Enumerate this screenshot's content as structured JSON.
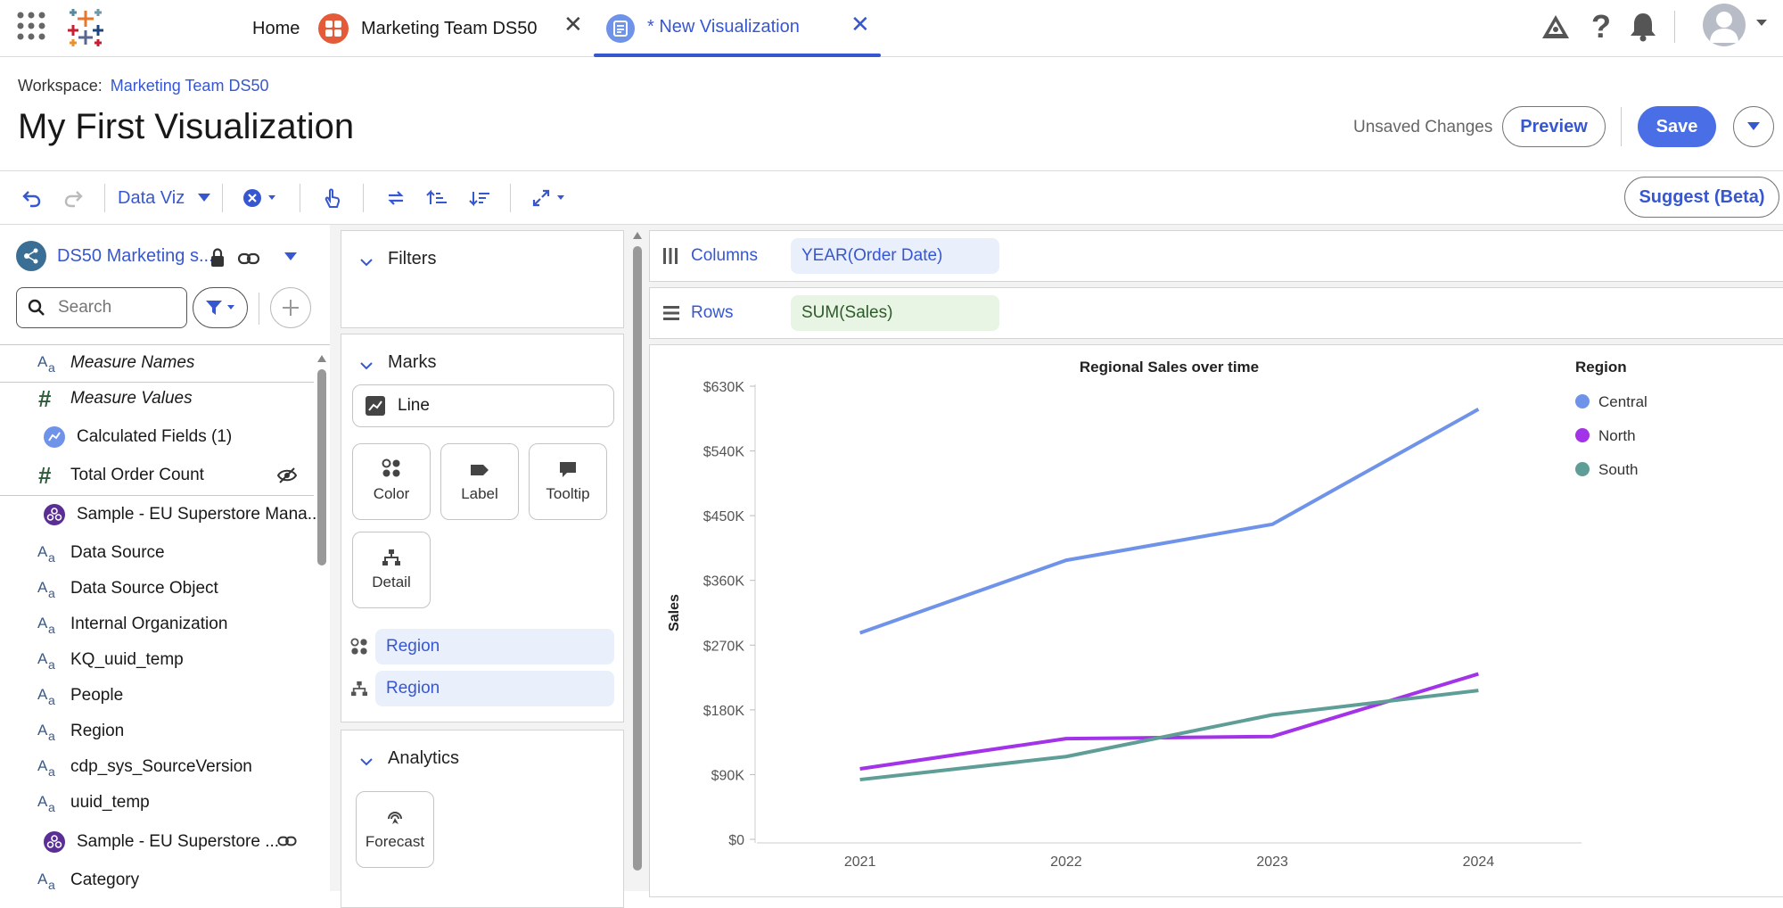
{
  "topnav": {
    "home_label": "Home",
    "tabs": [
      {
        "label": "Marketing Team DS50",
        "active": false
      },
      {
        "label": "* New Visualization",
        "active": true
      }
    ]
  },
  "header": {
    "workspace_label": "Workspace:",
    "workspace_name": "Marketing Team DS50",
    "title": "My First Visualization",
    "unsaved": "Unsaved Changes",
    "preview": "Preview",
    "save": "Save"
  },
  "toolbar": {
    "data_viz": "Data Viz",
    "suggest": "Suggest (Beta)"
  },
  "datapane": {
    "source_name": "DS50 Marketing s...",
    "search_placeholder": "Search",
    "fields": [
      {
        "icon": "abc-icon",
        "label": "Measure Names"
      },
      {
        "icon": "hash-icon",
        "label": "Measure Values"
      },
      {
        "icon": "calc-icon",
        "label": "Calculated Fields (1)"
      },
      {
        "icon": "hash-icon",
        "label": "Total Order Count"
      },
      {
        "icon": "object-icon",
        "label": "Sample - EU Superstore Mana..."
      },
      {
        "icon": "abc-icon",
        "label": "Data Source"
      },
      {
        "icon": "abc-icon",
        "label": "Data Source Object"
      },
      {
        "icon": "abc-icon",
        "label": "Internal Organization"
      },
      {
        "icon": "abc-icon",
        "label": "KQ_uuid_temp"
      },
      {
        "icon": "abc-icon",
        "label": "People"
      },
      {
        "icon": "abc-icon",
        "label": "Region"
      },
      {
        "icon": "abc-icon",
        "label": "cdp_sys_SourceVersion"
      },
      {
        "icon": "abc-icon",
        "label": "uuid_temp"
      },
      {
        "icon": "object-icon",
        "label": "Sample - EU Superstore ..."
      },
      {
        "icon": "abc-icon",
        "label": "Category"
      }
    ]
  },
  "shelves": {
    "filters": "Filters",
    "marks": "Marks",
    "mark_type": "Line",
    "mark_buttons": [
      "Color",
      "Label",
      "Tooltip",
      "Detail"
    ],
    "mark_pills": [
      "Region",
      "Region"
    ],
    "analytics": "Analytics",
    "forecast": "Forecast",
    "columns_label": "Columns",
    "columns_pill": "YEAR(Order Date)",
    "rows_label": "Rows",
    "rows_pill": "SUM(Sales)"
  },
  "chart_data": {
    "type": "line",
    "title": "Regional Sales over time",
    "xlabel": "",
    "ylabel": "Sales",
    "x": [
      "2021",
      "2022",
      "2023",
      "2024"
    ],
    "y_ticks": [
      0,
      90000,
      180000,
      270000,
      360000,
      450000,
      540000,
      630000
    ],
    "y_tick_labels": [
      "$0",
      "$90K",
      "$180K",
      "$270K",
      "$360K",
      "$450K",
      "$540K",
      "$630K"
    ],
    "ylim": [
      0,
      630000
    ],
    "legend_title": "Region",
    "legend_position": "top-right",
    "series": [
      {
        "name": "Central",
        "color": "#6f93e8",
        "values": [
          287000,
          388000,
          438000,
          598000
        ]
      },
      {
        "name": "North",
        "color": "#a233e8",
        "values": [
          98000,
          140000,
          143000,
          230000
        ]
      },
      {
        "name": "South",
        "color": "#5e9e97",
        "values": [
          83000,
          115000,
          173000,
          207000
        ]
      }
    ]
  }
}
